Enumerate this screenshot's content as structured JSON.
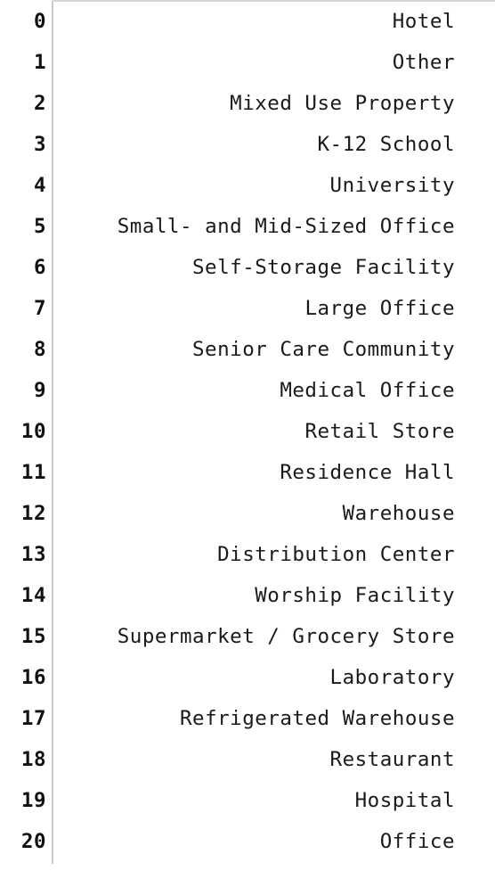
{
  "series": {
    "rows": [
      {
        "index": "0",
        "value": "Hotel"
      },
      {
        "index": "1",
        "value": "Other"
      },
      {
        "index": "2",
        "value": "Mixed Use Property"
      },
      {
        "index": "3",
        "value": "K-12 School"
      },
      {
        "index": "4",
        "value": "University"
      },
      {
        "index": "5",
        "value": "Small- and Mid-Sized Office"
      },
      {
        "index": "6",
        "value": "Self-Storage Facility"
      },
      {
        "index": "7",
        "value": "Large Office"
      },
      {
        "index": "8",
        "value": "Senior Care Community"
      },
      {
        "index": "9",
        "value": "Medical Office"
      },
      {
        "index": "10",
        "value": "Retail Store"
      },
      {
        "index": "11",
        "value": "Residence Hall"
      },
      {
        "index": "12",
        "value": "Warehouse"
      },
      {
        "index": "13",
        "value": "Distribution Center"
      },
      {
        "index": "14",
        "value": "Worship Facility"
      },
      {
        "index": "15",
        "value": "Supermarket / Grocery Store"
      },
      {
        "index": "16",
        "value": "Laboratory"
      },
      {
        "index": "17",
        "value": "Refrigerated Warehouse"
      },
      {
        "index": "18",
        "value": "Restaurant"
      },
      {
        "index": "19",
        "value": "Hospital"
      },
      {
        "index": "20",
        "value": "Office"
      }
    ]
  }
}
